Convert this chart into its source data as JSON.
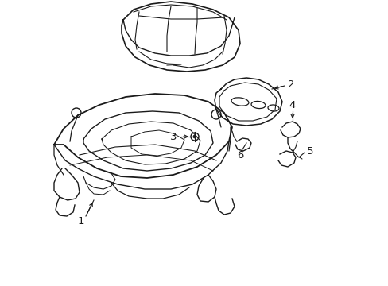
{
  "background_color": "#ffffff",
  "line_color": "#1a1a1a",
  "line_width": 0.9,
  "label_fontsize": 8.5,
  "fig_width": 4.89,
  "fig_height": 3.6,
  "dpi": 100
}
